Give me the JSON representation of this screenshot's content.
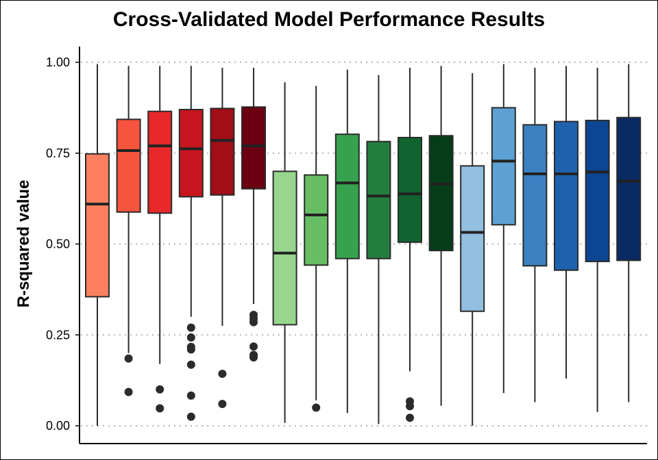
{
  "chart_data": {
    "type": "boxplot",
    "title": "Cross-Validated Model Performance Results",
    "xlabel": "",
    "ylabel": "R-squared value",
    "ylim": [
      0,
      1
    ],
    "yticks": [
      "0.00",
      "0.25",
      "0.50",
      "0.75",
      "1.00"
    ],
    "ytick_values": [
      0,
      0.25,
      0.5,
      0.75,
      1.0
    ],
    "grid": "horizontal dotted",
    "legend": "none",
    "boxes": [
      {
        "color": "#FC7F5F",
        "whisker_low": 0.0,
        "q1": 0.355,
        "median": 0.61,
        "q3": 0.748,
        "whisker_high": 0.995,
        "outliers": []
      },
      {
        "color": "#F7543E",
        "whisker_low": 0.2,
        "q1": 0.588,
        "median": 0.757,
        "q3": 0.843,
        "whisker_high": 0.99,
        "outliers": [
          0.185,
          0.093
        ]
      },
      {
        "color": "#E8282A",
        "whisker_low": 0.17,
        "q1": 0.585,
        "median": 0.77,
        "q3": 0.865,
        "whisker_high": 0.99,
        "outliers": [
          0.1,
          0.048
        ]
      },
      {
        "color": "#C7141E",
        "whisker_low": 0.3,
        "q1": 0.63,
        "median": 0.762,
        "q3": 0.87,
        "whisker_high": 0.99,
        "outliers": [
          0.27,
          0.243,
          0.217,
          0.21,
          0.168,
          0.083,
          0.025
        ]
      },
      {
        "color": "#A10E17",
        "whisker_low": 0.275,
        "q1": 0.635,
        "median": 0.785,
        "q3": 0.873,
        "whisker_high": 0.985,
        "outliers": [
          0.143,
          0.06
        ]
      },
      {
        "color": "#6B0010",
        "whisker_low": 0.335,
        "q1": 0.652,
        "median": 0.77,
        "q3": 0.877,
        "whisker_high": 0.985,
        "outliers": [
          0.305,
          0.295,
          0.285,
          0.218,
          0.195,
          0.188
        ]
      },
      {
        "color": "#98D68E",
        "whisker_low": 0.008,
        "q1": 0.278,
        "median": 0.475,
        "q3": 0.7,
        "whisker_high": 0.945,
        "outliers": []
      },
      {
        "color": "#67BD64",
        "whisker_low": 0.07,
        "q1": 0.442,
        "median": 0.58,
        "q3": 0.69,
        "whisker_high": 0.935,
        "outliers": [
          0.05
        ]
      },
      {
        "color": "#37A24E",
        "whisker_low": 0.035,
        "q1": 0.46,
        "median": 0.668,
        "q3": 0.802,
        "whisker_high": 0.98,
        "outliers": []
      },
      {
        "color": "#227F3F",
        "whisker_low": 0.005,
        "q1": 0.46,
        "median": 0.632,
        "q3": 0.782,
        "whisker_high": 0.965,
        "outliers": []
      },
      {
        "color": "#0F6430",
        "whisker_low": 0.15,
        "q1": 0.505,
        "median": 0.638,
        "q3": 0.793,
        "whisker_high": 0.985,
        "outliers": [
          0.067,
          0.054,
          0.022
        ]
      },
      {
        "color": "#063D19",
        "whisker_low": 0.055,
        "q1": 0.482,
        "median": 0.665,
        "q3": 0.798,
        "whisker_high": 0.99,
        "outliers": []
      },
      {
        "color": "#93BFE0",
        "whisker_low": 0.0,
        "q1": 0.315,
        "median": 0.532,
        "q3": 0.715,
        "whisker_high": 0.97,
        "outliers": []
      },
      {
        "color": "#5CA1D1",
        "whisker_low": 0.09,
        "q1": 0.553,
        "median": 0.728,
        "q3": 0.875,
        "whisker_high": 0.995,
        "outliers": []
      },
      {
        "color": "#3B80C0",
        "whisker_low": 0.065,
        "q1": 0.44,
        "median": 0.693,
        "q3": 0.828,
        "whisker_high": 0.985,
        "outliers": []
      },
      {
        "color": "#1E62AD",
        "whisker_low": 0.13,
        "q1": 0.428,
        "median": 0.693,
        "q3": 0.837,
        "whisker_high": 0.99,
        "outliers": []
      },
      {
        "color": "#0C4591",
        "whisker_low": 0.038,
        "q1": 0.452,
        "median": 0.698,
        "q3": 0.84,
        "whisker_high": 0.985,
        "outliers": []
      },
      {
        "color": "#0A2A63",
        "whisker_low": 0.065,
        "q1": 0.455,
        "median": 0.673,
        "q3": 0.848,
        "whisker_high": 0.995,
        "outliers": []
      }
    ]
  }
}
